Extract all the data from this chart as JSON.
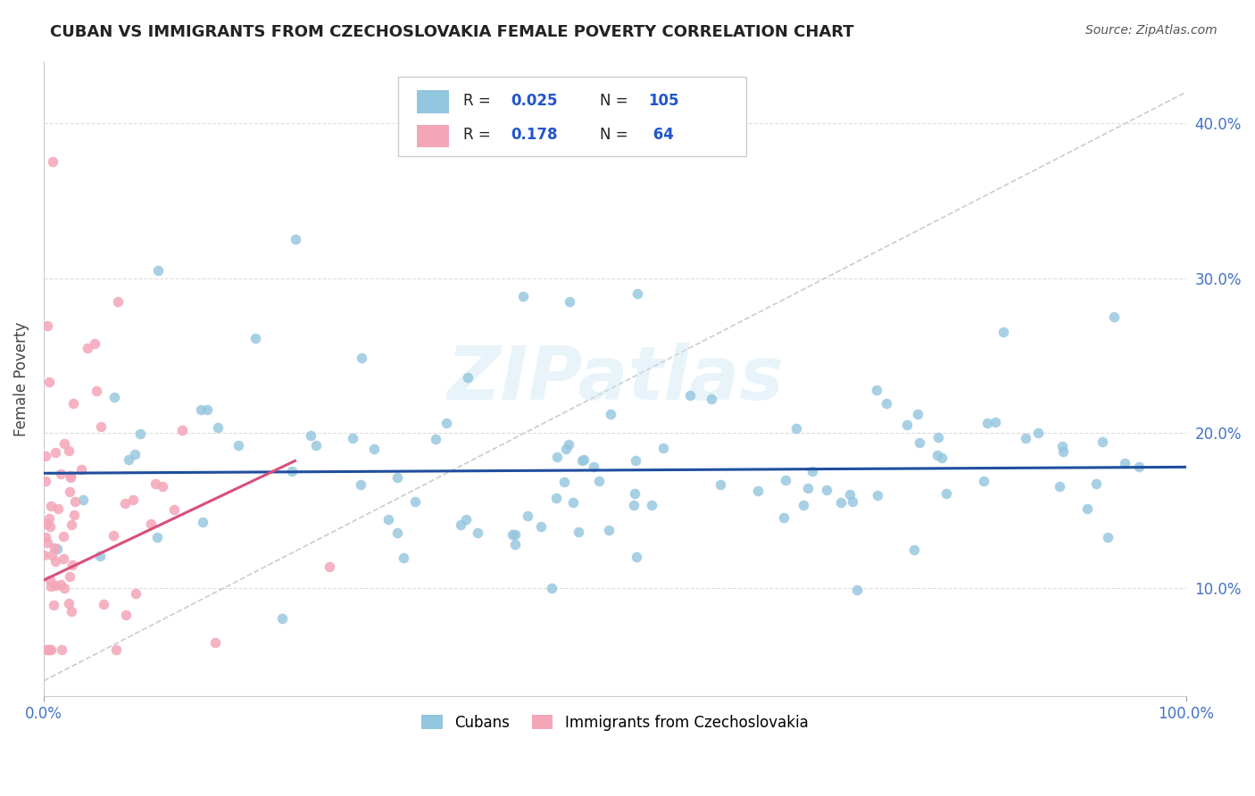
{
  "title": "CUBAN VS IMMIGRANTS FROM CZECHOSLOVAKIA FEMALE POVERTY CORRELATION CHART",
  "source": "Source: ZipAtlas.com",
  "ylabel": "Female Poverty",
  "ylim": [
    0.03,
    0.44
  ],
  "xlim": [
    0.0,
    1.0
  ],
  "watermark": "ZIPatlas",
  "blue_color": "#92c5de",
  "pink_color": "#f4a6b8",
  "blue_line_color": "#1f4e9e",
  "pink_line_color": "#d94f7a",
  "ref_line_color": "#cccccc",
  "grid_color": "#dddddd",
  "title_color": "#222222",
  "source_color": "#555555",
  "axis_label_color": "#444444",
  "tick_color": "#4472c4",
  "R1": 0.025,
  "R2": 0.178,
  "N1": 105,
  "N2": 64,
  "blue_line_y0": 0.174,
  "blue_line_y1": 0.178,
  "pink_line_y0": 0.105,
  "pink_line_y1": 0.182,
  "pink_line_x1": 0.22,
  "ref_line_x": [
    0.0,
    1.0
  ],
  "ref_line_y": [
    0.04,
    0.42
  ]
}
